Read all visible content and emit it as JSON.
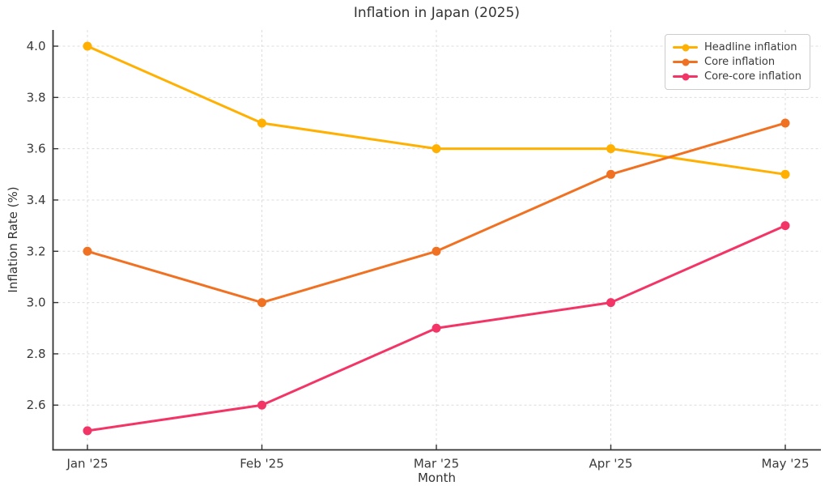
{
  "chart_data": {
    "type": "line",
    "title": "Inflation in Japan (2025)",
    "xlabel": "Month",
    "ylabel": "Inflation Rate (%)",
    "categories": [
      "Jan '25",
      "Feb '25",
      "Mar '25",
      "Apr '25",
      "May '25"
    ],
    "series": [
      {
        "name": "Headline inflation",
        "color": "#FFB000",
        "values": [
          4.0,
          3.7,
          3.6,
          3.6,
          3.5
        ]
      },
      {
        "name": "Core inflation",
        "color": "#F17122",
        "values": [
          3.2,
          3.0,
          3.2,
          3.5,
          3.7
        ]
      },
      {
        "name": "Core-core inflation",
        "color": "#F23566",
        "values": [
          2.5,
          2.6,
          2.9,
          3.0,
          3.3
        ]
      }
    ],
    "y_ticks": [
      2.6,
      2.8,
      3.0,
      3.2,
      3.4,
      3.6,
      3.8,
      4.0
    ],
    "ylim": [
      2.43,
      4.06
    ],
    "grid": true,
    "grid_style": "dashed",
    "legend_position": "top-right"
  },
  "style": {
    "grid_color": "#dcdcdc",
    "spine_color": "#333333",
    "tick_label_color": "#3a3a3a",
    "background_color": "#ffffff"
  }
}
